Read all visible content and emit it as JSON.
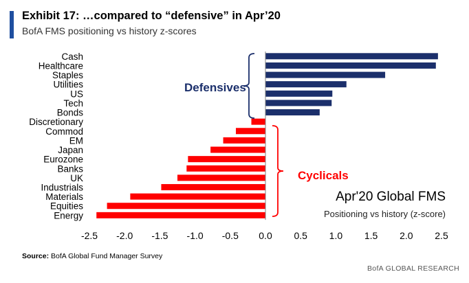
{
  "header": {
    "title": "Exhibit 17: …compared to “defensive” in Apr’20",
    "subtitle": "BofA FMS positioning vs history z-scores"
  },
  "footer": {
    "source_label": "Source:",
    "source_text": "BofA Global Fund Manager Survey",
    "credit": "BofA GLOBAL RESEARCH"
  },
  "annotations": {
    "defensives": "Defensives",
    "cyclicals": "Cyclicals",
    "box_title": "Apr'20 Global FMS",
    "box_subtitle": "Positioning vs history (z-score)"
  },
  "colors": {
    "defensive": "#1b2f6b",
    "cyclical": "#ff0000",
    "accent": "#1f4fa0"
  },
  "chart_data": {
    "type": "bar",
    "orientation": "horizontal",
    "categories": [
      "Cash",
      "Healthcare",
      "Staples",
      "Utilities",
      "US",
      "Tech",
      "Bonds",
      "Discretionary",
      "Commod",
      "EM",
      "Japan",
      "Eurozone",
      "Banks",
      "UK",
      "Industrials",
      "Materials",
      "Equities",
      "Energy"
    ],
    "values": [
      2.45,
      2.42,
      1.7,
      1.15,
      0.95,
      0.94,
      0.77,
      -0.2,
      -0.42,
      -0.6,
      -0.78,
      -1.1,
      -1.12,
      -1.25,
      -1.48,
      -1.92,
      -2.25,
      -2.4
    ],
    "groups": [
      "Defensives",
      "Defensives",
      "Defensives",
      "Defensives",
      "Defensives",
      "Defensives",
      "Defensives",
      "Cyclicals",
      "Cyclicals",
      "Cyclicals",
      "Cyclicals",
      "Cyclicals",
      "Cyclicals",
      "Cyclicals",
      "Cyclicals",
      "Cyclicals",
      "Cyclicals",
      "Cyclicals"
    ],
    "xlim": [
      -2.5,
      2.5
    ],
    "xticks": [
      "-2.5",
      "-2.0",
      "-1.5",
      "-1.0",
      "-0.5",
      "0.0",
      "0.5",
      "1.0",
      "1.5",
      "2.0",
      "2.5"
    ],
    "grid": false
  }
}
